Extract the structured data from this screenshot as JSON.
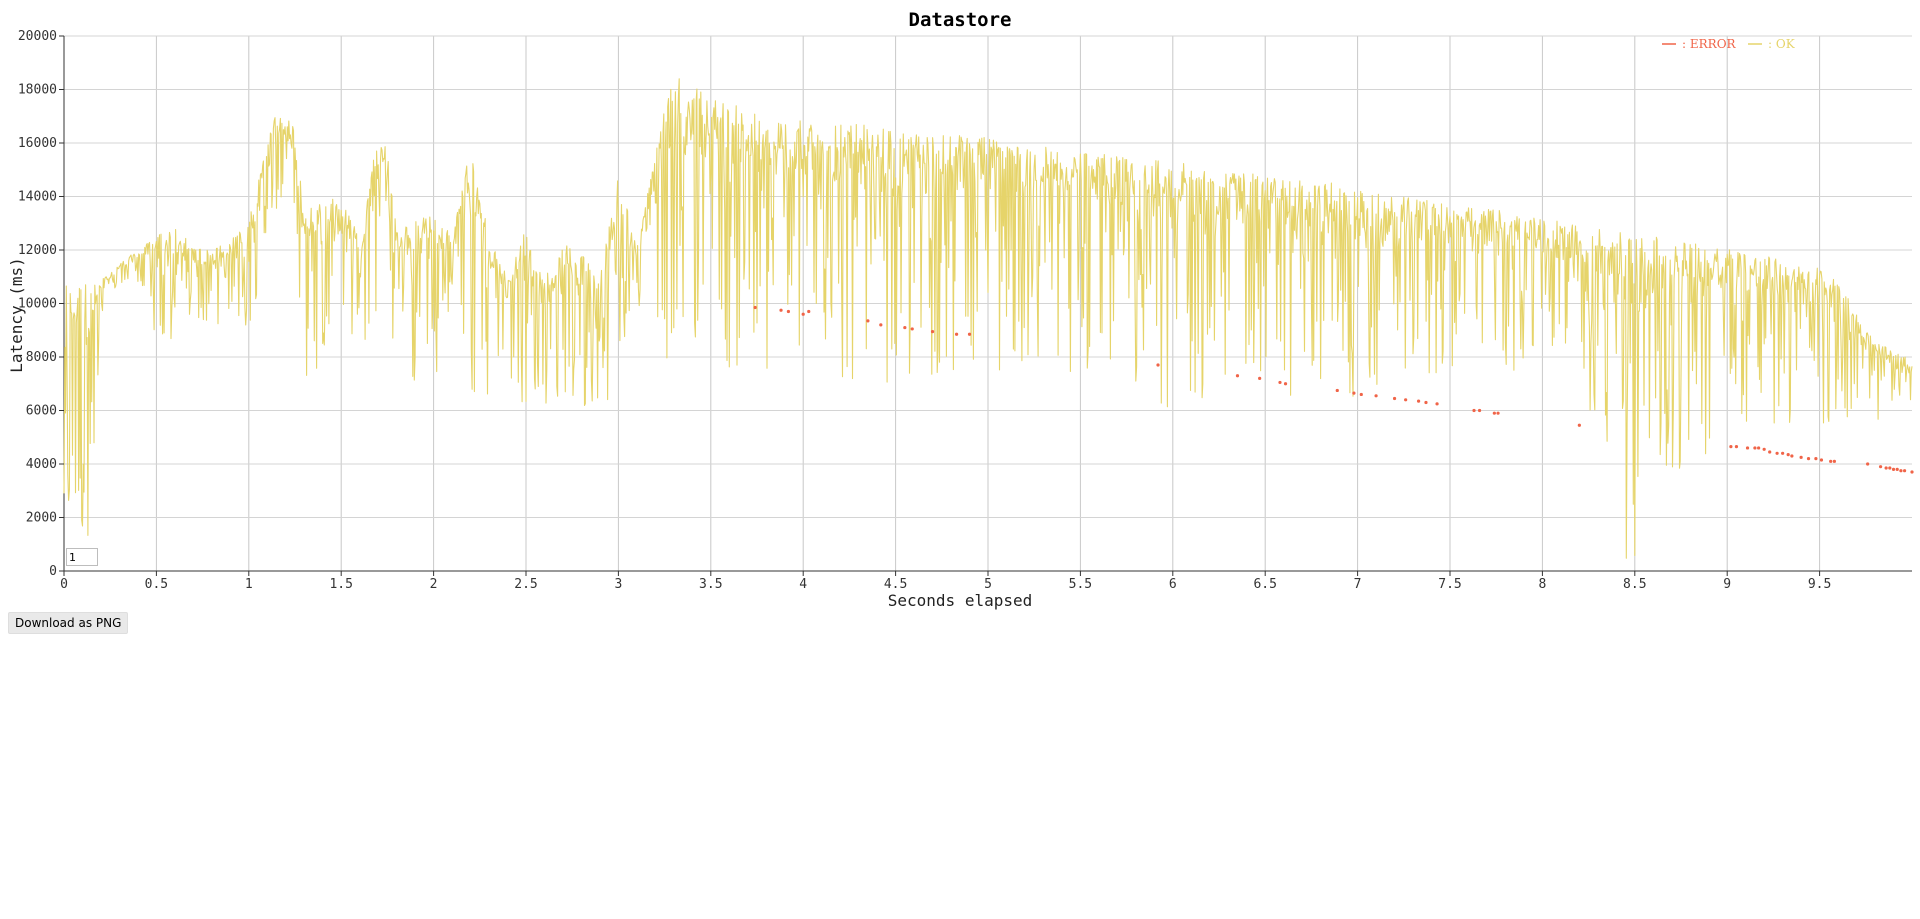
{
  "chart_data": {
    "type": "line",
    "title": "Datastore",
    "xlabel": "Seconds elapsed",
    "ylabel": "Latency (ms)",
    "xlim": [
      0,
      10
    ],
    "ylim": [
      0,
      20000
    ],
    "x_ticks": [
      "0",
      "0.5",
      "1",
      "1.5",
      "2",
      "2.5",
      "3",
      "3.5",
      "4",
      "4.5",
      "5",
      "5.5",
      "6",
      "6.5",
      "7",
      "7.5",
      "8",
      "8.5",
      "9",
      "9.5"
    ],
    "y_ticks": [
      "0",
      "2000",
      "4000",
      "6000",
      "8000",
      "10000",
      "12000",
      "14000",
      "16000",
      "18000",
      "20000"
    ],
    "grid": true,
    "legend_position": "top-right",
    "legend": [
      {
        "marker": "—",
        "label": ": ERROR",
        "color": "#f06448"
      },
      {
        "marker": "—",
        "label": ": OK",
        "color": "#e6d46a"
      }
    ],
    "series": [
      {
        "name": ": OK",
        "color": "#e6d46a",
        "style": "line",
        "envelope": {
          "x": [
            0,
            0.05,
            0.1,
            0.15,
            0.2,
            0.25,
            0.3,
            0.4,
            0.5,
            0.55,
            0.6,
            0.7,
            0.8,
            0.9,
            1.0,
            1.05,
            1.1,
            1.15,
            1.2,
            1.25,
            1.3,
            1.4,
            1.5,
            1.6,
            1.7,
            1.75,
            1.8,
            1.9,
            2.0,
            2.1,
            2.2,
            2.3,
            2.4,
            2.5,
            2.6,
            2.7,
            2.8,
            2.9,
            3.0,
            3.1,
            3.2,
            3.3,
            3.4,
            3.5,
            3.6,
            3.7,
            3.8,
            3.9,
            4.0,
            4.2,
            4.4,
            4.6,
            4.8,
            5.0,
            5.2,
            5.4,
            5.6,
            5.8,
            6.0,
            6.2,
            6.4,
            6.6,
            6.8,
            7.0,
            7.2,
            7.4,
            7.6,
            7.8,
            8.0,
            8.2,
            8.4,
            8.5,
            8.6,
            8.8,
            9.0,
            9.1,
            9.2,
            9.4,
            9.5,
            9.6,
            9.7,
            9.8,
            9.9,
            10.0
          ],
          "hi": [
            11000,
            10800,
            10900,
            10700,
            10900,
            11200,
            11500,
            12000,
            12500,
            13000,
            12800,
            12200,
            12000,
            12400,
            13200,
            14500,
            16200,
            17200,
            17000,
            16500,
            13500,
            13800,
            14000,
            12500,
            16600,
            16000,
            12800,
            13200,
            13300,
            12600,
            16000,
            12500,
            11000,
            12800,
            11000,
            12200,
            12000,
            11000,
            15200,
            12000,
            16000,
            18500,
            18200,
            17800,
            17500,
            17300,
            17100,
            17000,
            16800,
            16800,
            16600,
            16400,
            16300,
            16200,
            16000,
            15800,
            15600,
            15400,
            15300,
            15100,
            14900,
            14700,
            14600,
            14300,
            14000,
            13900,
            13600,
            13500,
            13200,
            12900,
            12800,
            12500,
            12500,
            12300,
            12100,
            12000,
            11800,
            11500,
            11300,
            11000,
            9600,
            8600,
            8200,
            7900
          ],
          "lo": [
            500,
            2000,
            1000,
            1500,
            8000,
            10500,
            10500,
            10800,
            8500,
            8000,
            8500,
            9500,
            9000,
            8300,
            9000,
            10500,
            13000,
            13500,
            13200,
            9500,
            7000,
            7000,
            7500,
            9500,
            6600,
            6700,
            10000,
            6600,
            6700,
            9800,
            6200,
            6200,
            7500,
            6000,
            6200,
            6400,
            5800,
            6500,
            6000,
            10300,
            6000,
            9000,
            8500,
            8000,
            7500,
            7500,
            7200,
            7200,
            7200,
            7000,
            7000,
            7000,
            7200,
            7500,
            7500,
            7400,
            7200,
            6800,
            6000,
            6500,
            6800,
            6500,
            6700,
            6300,
            6400,
            7200,
            7800,
            7500,
            7500,
            7800,
            400,
            300,
            3000,
            2800,
            6500,
            5500,
            5500,
            5000,
            5200,
            5400,
            5500,
            5600,
            5700,
            5800
          ]
        }
      },
      {
        "name": ": ERROR",
        "color": "#f06448",
        "style": "points",
        "x": [
          3.74,
          3.88,
          3.92,
          4.0,
          4.03,
          4.35,
          4.42,
          4.55,
          4.59,
          4.7,
          4.83,
          4.9,
          5.92,
          6.35,
          6.47,
          6.58,
          6.61,
          6.89,
          6.98,
          7.02,
          7.1,
          7.2,
          7.26,
          7.33,
          7.37,
          7.43,
          7.63,
          7.66,
          7.74,
          7.76,
          8.2,
          9.02,
          9.05,
          9.11,
          9.15,
          9.17,
          9.2,
          9.23,
          9.27,
          9.3,
          9.33,
          9.35,
          9.4,
          9.44,
          9.48,
          9.51,
          9.56,
          9.58,
          9.76,
          9.83,
          9.86,
          9.88,
          9.9,
          9.92,
          9.94,
          9.96,
          10.0
        ],
        "y": [
          9850,
          9750,
          9700,
          9600,
          9700,
          9350,
          9200,
          9100,
          9050,
          8950,
          8850,
          8850,
          7700,
          7300,
          7200,
          7050,
          7000,
          6750,
          6650,
          6600,
          6550,
          6450,
          6400,
          6350,
          6300,
          6250,
          6000,
          6000,
          5900,
          5900,
          5450,
          4650,
          4650,
          4600,
          4600,
          4600,
          4550,
          4450,
          4400,
          4400,
          4350,
          4300,
          4250,
          4200,
          4200,
          4150,
          4100,
          4100,
          4000,
          3900,
          3850,
          3850,
          3800,
          3800,
          3750,
          3750,
          3700
        ]
      }
    ]
  },
  "controls": {
    "page_value": "1",
    "download_label": "Download as PNG"
  }
}
